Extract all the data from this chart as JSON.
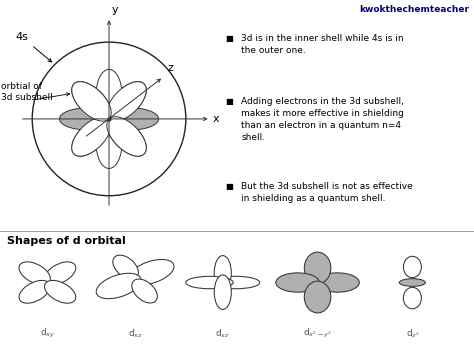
{
  "title": "kwokthechemteacher",
  "background_color": "#ffffff",
  "bullet_points": [
    "3d is in the inner shell while 4s is in\nthe outer one.",
    "Adding electrons in the 3d subshell,\nmakes it more effective in shielding\nthan an electron in a quantum n=4\nshell.",
    "But the 3d subshell is not as effective\nin shielding as a quantum shell."
  ],
  "section_title": "Shapes of d orbital",
  "label_color": "#555555",
  "text_color": "#000000",
  "header_color": "#00008B",
  "bullet_char": "■",
  "line_color": "#999999",
  "lobe_gray": "#b0b0b0",
  "lobe_white": "#ffffff",
  "lobe_edge": "#333333",
  "outer_circle_color": "#222222",
  "axis_color": "#333333"
}
